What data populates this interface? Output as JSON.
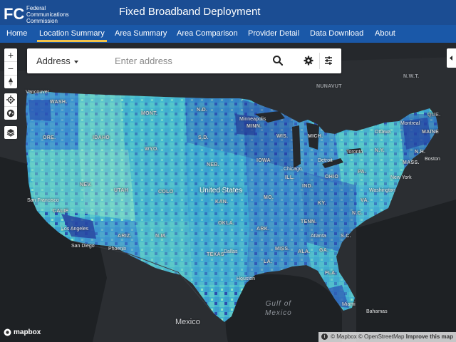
{
  "header": {
    "logo_mark": "FCC",
    "logo_lines": [
      "Federal",
      "Communications",
      "Commission"
    ],
    "title": "Fixed Broadband Deployment"
  },
  "nav": {
    "items": [
      "Home",
      "Location Summary",
      "Area Summary",
      "Area Comparison",
      "Provider Detail",
      "Data Download",
      "About"
    ],
    "active": "Location Summary"
  },
  "search": {
    "type_label": "Address",
    "placeholder": "Enter address",
    "icons": [
      "search-icon",
      "gear-icon",
      "sliders-icon"
    ]
  },
  "map_controls": {
    "zoom_in": "+",
    "zoom_out": "−",
    "icons": [
      "zoom-in-icon",
      "zoom-out-icon",
      "compass-icon",
      "locate-icon",
      "globe-icon",
      "layers-icon"
    ]
  },
  "map_labels": {
    "regions": [
      "WASH.",
      "N.D.",
      "MINN.",
      "WIS.",
      "MICH.",
      "MAINE",
      "MASS.",
      "ORE.",
      "IDAHO",
      "WYO.",
      "S.D.",
      "NEB.",
      "IOWA",
      "ILL.",
      "IND.",
      "OHIO",
      "PA.",
      "N.Y.",
      "NEV.",
      "UTAH",
      "COLO",
      "KAN.",
      "MO.",
      "KY.",
      "VA.",
      "CALIF",
      "ARIZ.",
      "N.M.",
      "OKLA.",
      "ARK.",
      "TENN.",
      "N.C.",
      "S.C.",
      "TEXAS",
      "LA.",
      "MISS.",
      "ALA.",
      "GA.",
      "FLA.",
      "MONT.",
      "N.H."
    ],
    "cities": [
      "Vancouver",
      "Minneapolis",
      "Chicago",
      "Toronto",
      "Ottawa",
      "Montreal",
      "Boston",
      "New York",
      "Washington",
      "San Francisco",
      "Los Angeles",
      "San Diego",
      "Phoenix",
      "Dallas",
      "Houston",
      "Atlanta",
      "Miami",
      "Detroit"
    ],
    "country_us": "United States",
    "country_mexico": "Mexico",
    "country_bahamas": "Bahamas",
    "water": [
      "Gulf of",
      "Mexico"
    ],
    "top_labels": [
      "NUNAVUT",
      "N.W.T.",
      "QUE."
    ]
  },
  "attribution": {
    "mapbox_logo": "mapbox",
    "text": "© Mapbox © OpenStreetMap",
    "improve": "Improve this map"
  },
  "colors": {
    "header_bg": "#1b4d93",
    "nav_bg": "#1a58a8",
    "active_underline": "#f0c24a",
    "map_bg": "#25282c",
    "fill_light": "#8fe3c7",
    "fill_mid": "#43b6cf",
    "fill_dark": "#2a4fb0"
  }
}
